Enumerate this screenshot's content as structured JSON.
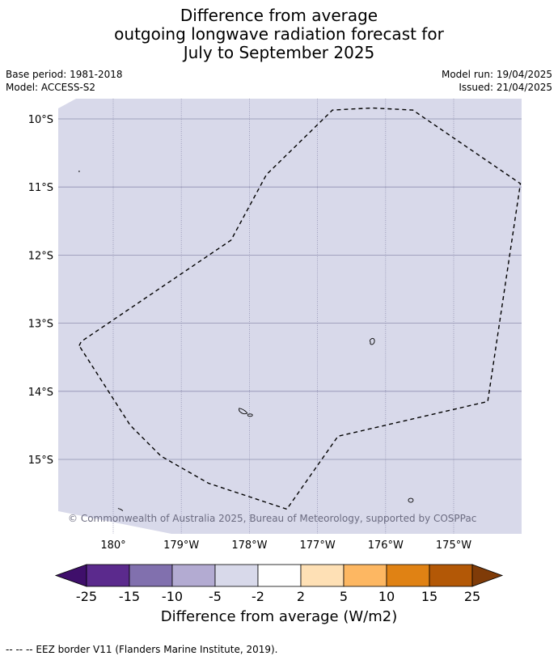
{
  "title": {
    "line1": "Difference from average",
    "line2": "outgoing longwave radiation forecast for",
    "line3": "July to September 2025"
  },
  "meta": {
    "base_period": "Base period: 1981-2018",
    "model": "Model: ACCESS-S2",
    "model_run": "Model run: 19/04/2025",
    "issued": "Issued: 21/04/2025"
  },
  "map": {
    "fill_color": "#d8d9ea",
    "grid_color": "#8f8fb0",
    "lon_range": [
      -180.8,
      -174.0
    ],
    "lat_range": [
      -15.73,
      -9.7
    ],
    "lat_ticks": [
      {
        "value": -10,
        "label": "10°S"
      },
      {
        "value": -11,
        "label": "11°S"
      },
      {
        "value": -12,
        "label": "12°S"
      },
      {
        "value": -13,
        "label": "13°S"
      },
      {
        "value": -14,
        "label": "14°S"
      },
      {
        "value": -15,
        "label": "15°S"
      }
    ],
    "lon_ticks": [
      {
        "value": -180,
        "label": "180°"
      },
      {
        "value": -179,
        "label": "179°W"
      },
      {
        "value": -178,
        "label": "178°W"
      },
      {
        "value": -177,
        "label": "177°W"
      },
      {
        "value": -176,
        "label": "176°W"
      },
      {
        "value": -175,
        "label": "175°W"
      }
    ],
    "eez_border": [
      [
        -180.5,
        -13.33
      ],
      [
        -180.47,
        -13.27
      ],
      [
        -178.27,
        -11.78
      ],
      [
        -177.75,
        -10.82
      ],
      [
        -176.78,
        -9.87
      ],
      [
        -176.2,
        -9.84
      ],
      [
        -175.6,
        -9.87
      ],
      [
        -174.02,
        -10.95
      ],
      [
        -174.5,
        -14.15
      ],
      [
        -176.7,
        -14.66
      ],
      [
        -177.45,
        -15.73
      ],
      [
        -178.6,
        -15.35
      ],
      [
        -179.3,
        -14.95
      ],
      [
        -179.75,
        -14.5
      ],
      [
        -180.5,
        -13.33
      ]
    ],
    "copyright": "© Commonwealth of Australia 2025, Bureau of Meteorology, supported by COSPPac"
  },
  "colorbar": {
    "title": "Difference from average (W/m2)",
    "colors": [
      "#3f0f6b",
      "#5b2a8d",
      "#8170ae",
      "#b3abd2",
      "#d8d9ea",
      "#ffffff",
      "#fee0b5",
      "#fdb762",
      "#e08214",
      "#b35806",
      "#7f3b08"
    ],
    "tick_labels": [
      "-25",
      "-15",
      "-10",
      "-5",
      "-2",
      "2",
      "5",
      "10",
      "15",
      "25"
    ]
  },
  "footnote": "--  --  -- EEZ border V11 (Flanders Marine Institute, 2019)."
}
